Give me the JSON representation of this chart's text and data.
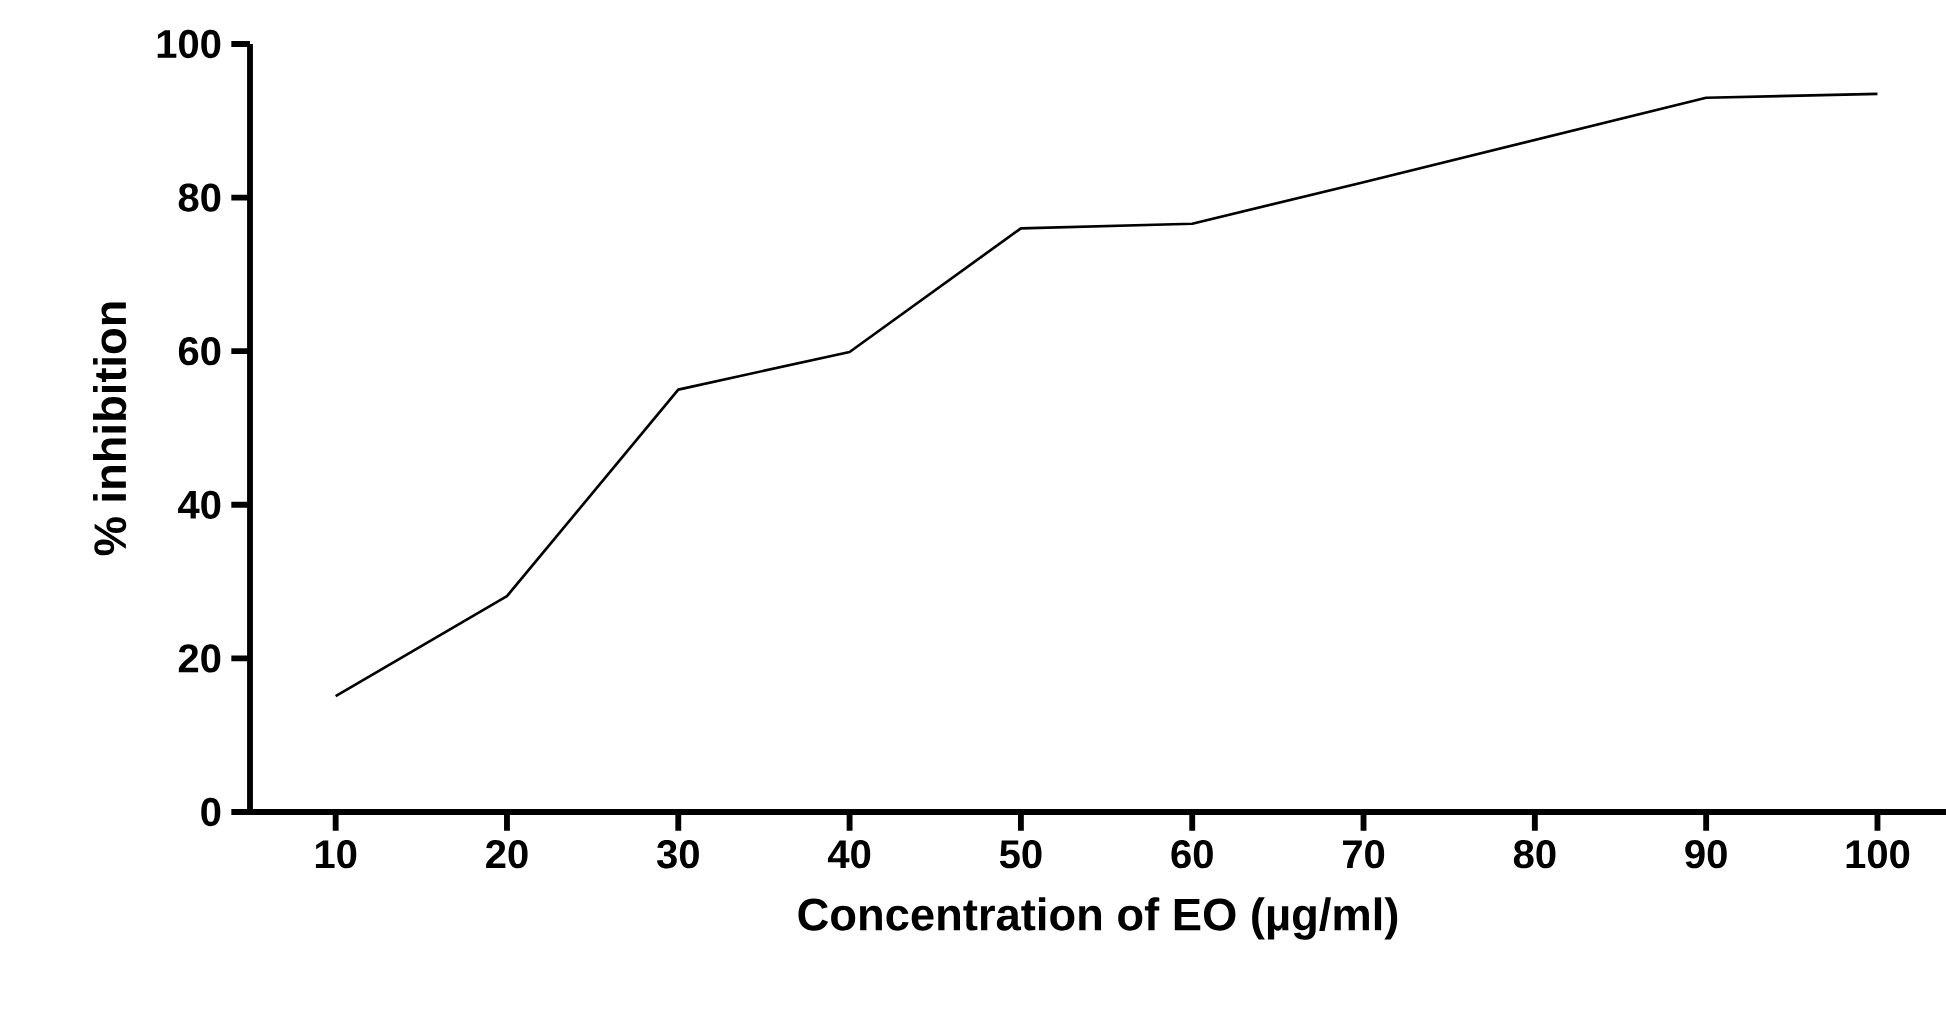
{
  "chart_data": {
    "type": "line",
    "xlabel": "Concentration of EO (µg/ml)",
    "ylabel": "% inhibition",
    "x": [
      10,
      20,
      30,
      40,
      50,
      60,
      70,
      80,
      90,
      100
    ],
    "series": [
      {
        "color": "#000000",
        "values": [
          15.1,
          28.1,
          55,
          59.9,
          76,
          76.6,
          82,
          87.5,
          93,
          93.5
        ]
      }
    ],
    "xlim": [
      5,
      104
    ],
    "ylim": [
      0,
      100
    ],
    "xticks": [
      10,
      20,
      30,
      40,
      50,
      60,
      70,
      80,
      90,
      100
    ],
    "yticks": [
      0,
      20,
      40,
      60,
      80,
      100
    ],
    "grid": false,
    "marker": "none",
    "line_style": "solid"
  }
}
